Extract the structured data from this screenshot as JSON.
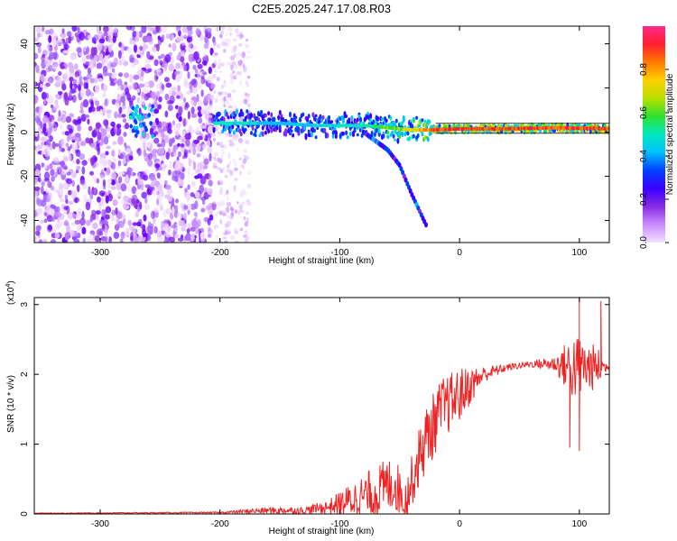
{
  "figure": {
    "title": "C2E5.2025.247.17.08.R03"
  },
  "chart_data": [
    {
      "type": "heatmap",
      "title": "",
      "xlabel": "Height of straight line (km)",
      "ylabel": "Frequency (Hz)",
      "xlim": [
        -355,
        125
      ],
      "ylim": [
        -50,
        48
      ],
      "xticks": [
        -300,
        -200,
        -100,
        0,
        100
      ],
      "yticks": [
        -40,
        -20,
        0,
        20,
        40
      ],
      "colorbar": {
        "label": "Normalized spectral amplitude",
        "range": [
          0,
          1
        ],
        "ticks": [
          0.0,
          0.2,
          0.4,
          0.6,
          0.8
        ],
        "tick_labels": [
          "0.0",
          "0.2",
          "0.4",
          "0.6",
          "0.8"
        ],
        "colors": [
          "#f4e0ff",
          "#c98cff",
          "#8a2be2",
          "#3a00ff",
          "#0040ff",
          "#00c0ff",
          "#00e8c0",
          "#30e030",
          "#b8e000",
          "#ffd000",
          "#ff7a00",
          "#ff1f30",
          "#ff2a8a"
        ]
      },
      "features": {
        "noise_region_x": [
          -355,
          -205
        ],
        "dense_noise_x": [
          -355,
          -205
        ],
        "sparse_noise_x": [
          -205,
          -175
        ],
        "burst": {
          "x": [
            -275,
            -255
          ],
          "y": [
            -2,
            12
          ]
        },
        "main_band": [
          {
            "x": -205,
            "y": 4,
            "amp": 0.55
          },
          {
            "x": -180,
            "y": 4,
            "amp": 0.5
          },
          {
            "x": -150,
            "y": 4,
            "amp": 0.45
          },
          {
            "x": -120,
            "y": 3,
            "amp": 0.5
          },
          {
            "x": -100,
            "y": 3,
            "amp": 0.5
          },
          {
            "x": -80,
            "y": 3,
            "amp": 0.55
          },
          {
            "x": -60,
            "y": 2,
            "amp": 0.65
          },
          {
            "x": -40,
            "y": 1,
            "amp": 0.75
          },
          {
            "x": -20,
            "y": 1,
            "amp": 0.95
          },
          {
            "x": 0,
            "y": 1.5,
            "amp": 0.95
          },
          {
            "x": 40,
            "y": 1.5,
            "amp": 0.95
          },
          {
            "x": 80,
            "y": 2,
            "amp": 0.95
          },
          {
            "x": 125,
            "y": 1.5,
            "amp": 0.95
          }
        ],
        "descending_branch": [
          {
            "x": -80,
            "y": 0
          },
          {
            "x": -60,
            "y": -8
          },
          {
            "x": -50,
            "y": -15
          },
          {
            "x": -40,
            "y": -28
          },
          {
            "x": -28,
            "y": -42
          }
        ]
      }
    },
    {
      "type": "line",
      "title": "",
      "xlabel": "Height of straight line (km)",
      "ylabel": "SNR (10 * v/v)",
      "y_scale_label": "(x10",
      "y_scale_exponent": "4",
      "y_scale_close": ")",
      "xlim": [
        -355,
        125
      ],
      "ylim": [
        0,
        3.1
      ],
      "xticks": [
        -300,
        -200,
        -100,
        0,
        100
      ],
      "yticks": [
        0,
        1,
        2,
        3
      ],
      "color": "#ee2222",
      "series": [
        {
          "name": "SNR",
          "envelope": [
            {
              "x": -355,
              "base": 0.01,
              "noise": 0.005
            },
            {
              "x": -200,
              "base": 0.02,
              "noise": 0.01
            },
            {
              "x": -160,
              "base": 0.05,
              "noise": 0.05
            },
            {
              "x": -130,
              "base": 0.05,
              "noise": 0.05
            },
            {
              "x": -110,
              "base": 0.1,
              "noise": 0.1
            },
            {
              "x": -90,
              "base": 0.2,
              "noise": 0.25
            },
            {
              "x": -70,
              "base": 0.3,
              "noise": 0.4
            },
            {
              "x": -55,
              "base": 0.45,
              "noise": 0.4
            },
            {
              "x": -45,
              "base": 0.2,
              "noise": 0.3
            },
            {
              "x": -30,
              "base": 1.0,
              "noise": 0.5
            },
            {
              "x": -15,
              "base": 1.5,
              "noise": 0.45
            },
            {
              "x": 0,
              "base": 1.7,
              "noise": 0.4
            },
            {
              "x": 20,
              "base": 2.0,
              "noise": 0.12
            },
            {
              "x": 40,
              "base": 2.1,
              "noise": 0.05
            },
            {
              "x": 60,
              "base": 2.15,
              "noise": 0.05
            },
            {
              "x": 80,
              "base": 2.15,
              "noise": 0.12
            },
            {
              "x": 95,
              "base": 2.1,
              "noise": 0.5
            },
            {
              "x": 105,
              "base": 2.1,
              "noise": 0.4
            },
            {
              "x": 115,
              "base": 2.1,
              "noise": 0.3
            },
            {
              "x": 125,
              "base": 2.1,
              "noise": 0.01
            }
          ],
          "notable_points": [
            {
              "x": 100,
              "y": 3.1
            },
            {
              "x": 100,
              "y": 0.9
            },
            {
              "x": 118,
              "y": 3.05
            },
            {
              "x": 92,
              "y": 0.95
            }
          ]
        }
      ]
    }
  ]
}
